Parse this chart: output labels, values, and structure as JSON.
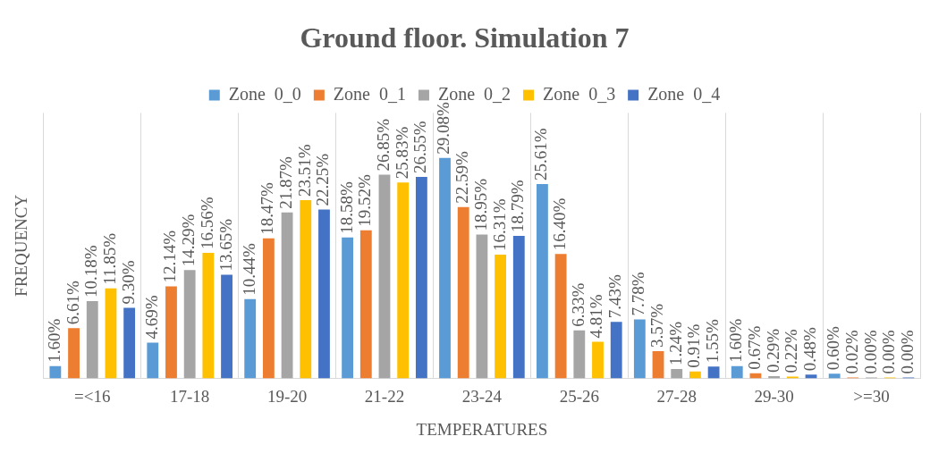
{
  "chart_data": {
    "type": "bar",
    "title": "Ground floor. Simulation 7",
    "xlabel": "TEMPERATURES",
    "ylabel": "FREQUENCY",
    "categories": [
      "=<16",
      "17-18",
      "19-20",
      "21-22",
      "23-24",
      "25-26",
      "27-28",
      "29-30",
      ">=30"
    ],
    "series": [
      {
        "name": "Zone  0_0",
        "color": "#5b9bd5",
        "values": [
          1.6,
          4.69,
          10.44,
          18.58,
          29.08,
          25.61,
          7.78,
          1.6,
          0.6
        ],
        "value_labels": [
          "1.60%",
          "4.69%",
          "10.44%",
          "18.58%",
          "29.08%",
          "25.61%",
          "7.78%",
          "1.60%",
          "0.60%"
        ]
      },
      {
        "name": "Zone  0_1",
        "color": "#ed7d31",
        "values": [
          6.61,
          12.14,
          18.47,
          19.52,
          22.59,
          16.4,
          3.57,
          0.67,
          0.02
        ],
        "value_labels": [
          "6.61%",
          "12.14%",
          "18.47%",
          "19.52%",
          "22.59%",
          "16.40%",
          "3.57%",
          "0.67%",
          "0.02%"
        ]
      },
      {
        "name": "Zone  0_2",
        "color": "#a5a5a5",
        "values": [
          10.18,
          14.29,
          21.87,
          26.85,
          18.95,
          6.33,
          1.24,
          0.29,
          0.0
        ],
        "value_labels": [
          "10.18%",
          "14.29%",
          "21.87%",
          "26.85%",
          "18.95%",
          "6.33%",
          "1.24%",
          "0.29%",
          "0.00%"
        ]
      },
      {
        "name": "Zone  0_3",
        "color": "#ffc000",
        "values": [
          11.85,
          16.56,
          23.51,
          25.83,
          16.31,
          4.81,
          0.91,
          0.22,
          0.0
        ],
        "value_labels": [
          "11.85%",
          "16.56%",
          "23.51%",
          "25.83%",
          "16.31%",
          "4.81%",
          "0.91%",
          "0.22%",
          "0.00%"
        ]
      },
      {
        "name": "Zone  0_4",
        "color": "#4472c4",
        "values": [
          9.3,
          13.65,
          22.25,
          26.55,
          18.79,
          7.43,
          1.55,
          0.48,
          0.0
        ],
        "value_labels": [
          "9.30%",
          "13.65%",
          "22.25%",
          "26.55%",
          "18.79%",
          "7.43%",
          "1.55%",
          "0.48%",
          "0.00%"
        ]
      }
    ],
    "ylim": [
      0,
      35
    ],
    "tick_labels": "x",
    "grid": "x",
    "legend": "top"
  }
}
